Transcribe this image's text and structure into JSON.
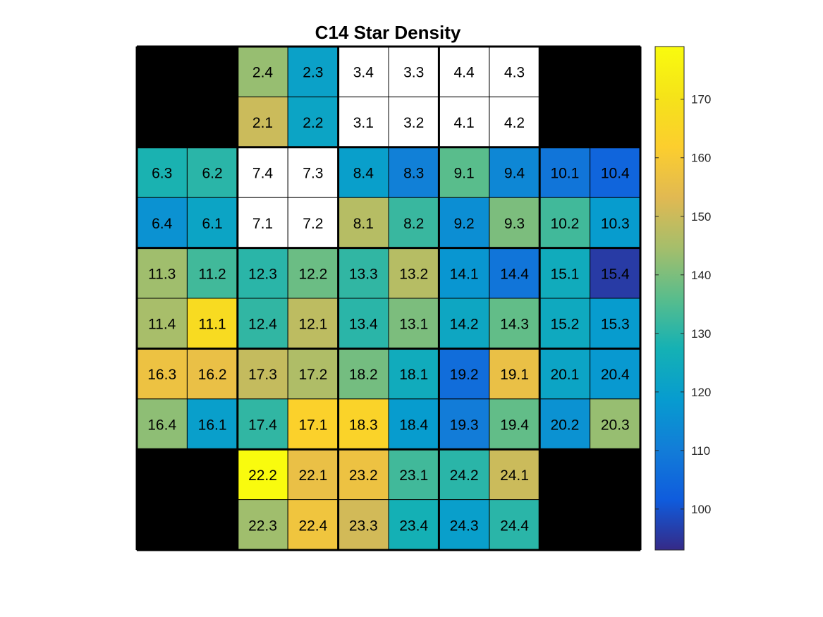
{
  "chart_data": {
    "type": "heatmap",
    "title": "C14 Star Density",
    "colormap": "parula",
    "clim": [
      93,
      179
    ],
    "colorbar_ticks": [
      100,
      110,
      120,
      130,
      140,
      150,
      160,
      170
    ],
    "missing_color": "#000000",
    "masked_color": "#ffffff",
    "rows": [
      [
        null,
        null,
        {
          "label": "2.4",
          "value": 143
        },
        {
          "label": "2.3",
          "value": 121
        },
        {
          "label": "3.4",
          "masked": true
        },
        {
          "label": "3.3",
          "masked": true
        },
        {
          "label": "4.4",
          "masked": true
        },
        {
          "label": "4.3",
          "masked": true
        },
        null,
        null
      ],
      [
        null,
        null,
        {
          "label": "2.1",
          "value": 150
        },
        {
          "label": "2.2",
          "value": 122
        },
        {
          "label": "3.1",
          "masked": true
        },
        {
          "label": "3.2",
          "masked": true
        },
        {
          "label": "4.1",
          "masked": true
        },
        {
          "label": "4.2",
          "masked": true
        },
        null,
        null
      ],
      [
        {
          "label": "6.3",
          "value": 128
        },
        {
          "label": "6.2",
          "value": 130
        },
        {
          "label": "7.4",
          "masked": true
        },
        {
          "label": "7.3",
          "masked": true
        },
        {
          "label": "8.4",
          "value": 120
        },
        {
          "label": "8.3",
          "value": 111
        },
        {
          "label": "9.1",
          "value": 136
        },
        {
          "label": "9.4",
          "value": 113
        },
        {
          "label": "10.1",
          "value": 108
        },
        {
          "label": "10.4",
          "value": 104
        }
      ],
      [
        {
          "label": "6.4",
          "value": 116
        },
        {
          "label": "6.1",
          "value": 122
        },
        {
          "label": "7.1",
          "masked": true
        },
        {
          "label": "7.2",
          "masked": true
        },
        {
          "label": "8.1",
          "value": 147
        },
        {
          "label": "8.2",
          "value": 132
        },
        {
          "label": "9.2",
          "value": 115
        },
        {
          "label": "9.3",
          "value": 140
        },
        {
          "label": "10.2",
          "value": 133
        },
        {
          "label": "10.3",
          "value": 119
        }
      ],
      [
        {
          "label": "11.3",
          "value": 144
        },
        {
          "label": "11.2",
          "value": 133
        },
        {
          "label": "12.3",
          "value": 130
        },
        {
          "label": "12.2",
          "value": 138
        },
        {
          "label": "13.3",
          "value": 131
        },
        {
          "label": "13.2",
          "value": 147
        },
        {
          "label": "14.1",
          "value": 117
        },
        {
          "label": "14.4",
          "value": 108
        },
        {
          "label": "15.1",
          "value": 125
        },
        {
          "label": "15.4",
          "value": 96
        }
      ],
      [
        {
          "label": "11.4",
          "value": 145
        },
        {
          "label": "11.1",
          "value": 167
        },
        {
          "label": "12.4",
          "value": 131
        },
        {
          "label": "12.1",
          "value": 148
        },
        {
          "label": "13.4",
          "value": 130
        },
        {
          "label": "13.1",
          "value": 140
        },
        {
          "label": "14.2",
          "value": 123
        },
        {
          "label": "14.3",
          "value": 137
        },
        {
          "label": "15.2",
          "value": 124
        },
        {
          "label": "15.3",
          "value": 119
        }
      ],
      [
        {
          "label": "16.3",
          "value": 157
        },
        {
          "label": "16.2",
          "value": 156
        },
        {
          "label": "17.3",
          "value": 149
        },
        {
          "label": "17.2",
          "value": 146
        },
        {
          "label": "18.2",
          "value": 139
        },
        {
          "label": "18.1",
          "value": 125
        },
        {
          "label": "19.2",
          "value": 106
        },
        {
          "label": "19.1",
          "value": 156
        },
        {
          "label": "20.1",
          "value": 122
        },
        {
          "label": "20.4",
          "value": 118
        }
      ],
      [
        {
          "label": "16.4",
          "value": 142
        },
        {
          "label": "16.1",
          "value": 120
        },
        {
          "label": "17.4",
          "value": 131
        },
        {
          "label": "17.1",
          "value": 163
        },
        {
          "label": "18.3",
          "value": 164
        },
        {
          "label": "18.4",
          "value": 119
        },
        {
          "label": "19.3",
          "value": 110
        },
        {
          "label": "19.4",
          "value": 137
        },
        {
          "label": "20.2",
          "value": 116
        },
        {
          "label": "20.3",
          "value": 143
        }
      ],
      [
        null,
        null,
        {
          "label": "22.2",
          "value": 179
        },
        {
          "label": "22.1",
          "value": 156
        },
        {
          "label": "23.2",
          "value": 157
        },
        {
          "label": "23.1",
          "value": 133
        },
        {
          "label": "24.2",
          "value": 130
        },
        {
          "label": "24.1",
          "value": 150
        },
        null,
        null
      ],
      [
        null,
        null,
        {
          "label": "22.3",
          "value": 144
        },
        {
          "label": "22.4",
          "value": 158
        },
        {
          "label": "23.3",
          "value": 151
        },
        {
          "label": "23.4",
          "value": 127
        },
        {
          "label": "24.3",
          "value": 120
        },
        {
          "label": "24.4",
          "value": 130
        },
        null,
        null
      ]
    ]
  }
}
